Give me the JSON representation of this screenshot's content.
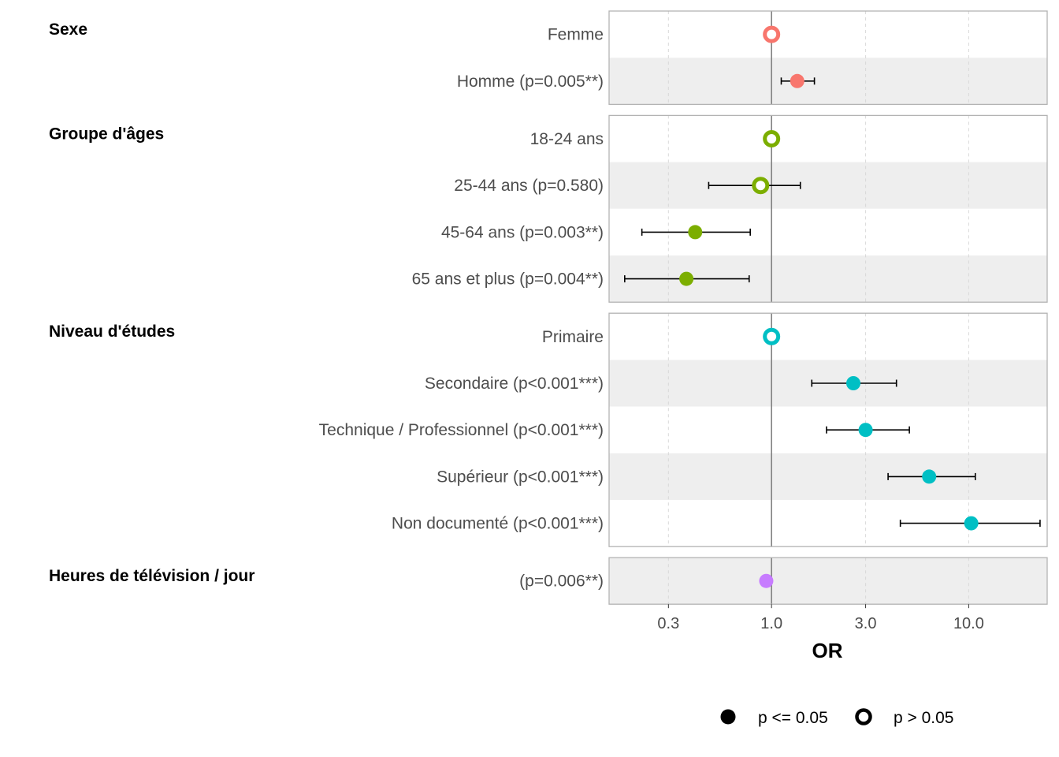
{
  "chart_data": {
    "type": "scatter",
    "subtype": "forest-plot",
    "xlabel": "OR",
    "x_scale": "log",
    "xlim": [
      0.15,
      25
    ],
    "x_ticks": [
      0.3,
      1.0,
      3.0,
      10.0
    ],
    "x_tick_labels": [
      "0.3",
      "1.0",
      "3.0",
      "10.0"
    ],
    "reference_line": 1.0,
    "grid": true,
    "legend_position": "bottom",
    "legend": [
      {
        "label": "p <= 0.05",
        "marker": "filled"
      },
      {
        "label": "p > 0.05",
        "marker": "open"
      }
    ],
    "groups": [
      {
        "title": "Sexe",
        "color": "#F8766D",
        "rows": [
          {
            "label": "Femme",
            "or": 1.0,
            "ci": null,
            "significant": false
          },
          {
            "label": "Homme (p=0.005**)",
            "or": 1.35,
            "ci": [
              1.12,
              1.65
            ],
            "significant": true
          }
        ]
      },
      {
        "title": "Groupe d'âges",
        "color": "#7CAE00",
        "rows": [
          {
            "label": "18-24 ans",
            "or": 1.0,
            "ci": null,
            "significant": false
          },
          {
            "label": "25-44 ans (p=0.580)",
            "or": 0.88,
            "ci": [
              0.48,
              1.4
            ],
            "significant": false
          },
          {
            "label": "45-64 ans (p=0.003**)",
            "or": 0.41,
            "ci": [
              0.22,
              0.78
            ],
            "significant": true
          },
          {
            "label": "65 ans et plus (p=0.004**)",
            "or": 0.37,
            "ci": [
              0.18,
              0.77
            ],
            "significant": true
          }
        ]
      },
      {
        "title": "Niveau d'études",
        "color": "#00BFC4",
        "rows": [
          {
            "label": "Primaire",
            "or": 1.0,
            "ci": null,
            "significant": false
          },
          {
            "label": "Secondaire (p<0.001***)",
            "or": 2.6,
            "ci": [
              1.6,
              4.3
            ],
            "significant": true
          },
          {
            "label": "Technique / Professionnel (p<0.001***)",
            "or": 3.0,
            "ci": [
              1.9,
              5.0
            ],
            "significant": true
          },
          {
            "label": "Supérieur (p<0.001***)",
            "or": 6.3,
            "ci": [
              3.9,
              10.8
            ],
            "significant": true
          },
          {
            "label": "Non documenté (p<0.001***)",
            "or": 10.3,
            "ci": [
              4.5,
              23.0
            ],
            "significant": true
          }
        ]
      },
      {
        "title": "Heures de télévision / jour",
        "color": "#C77CFF",
        "rows": [
          {
            "label": "(p=0.006**)",
            "or": 0.94,
            "ci": null,
            "significant": true
          }
        ]
      }
    ]
  }
}
